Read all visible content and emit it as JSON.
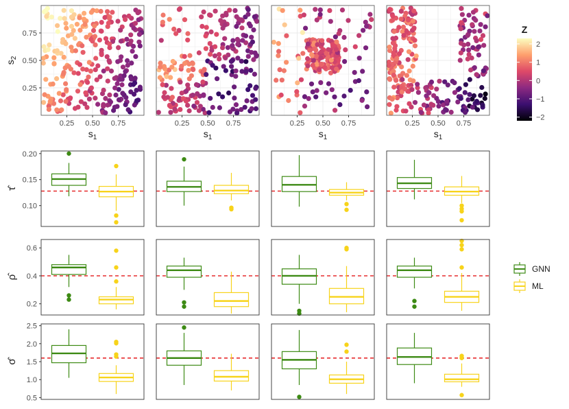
{
  "colors": {
    "gnn": "#3d8a14",
    "ml": "#f7d31a",
    "truth_line": "#e41a1c",
    "grid": "#ebebeb",
    "panel_border": "#333333",
    "text": "#333333"
  },
  "colorbar": {
    "title": "Z",
    "ticks": [
      "2",
      "1",
      "0",
      "−1",
      "−2"
    ],
    "tick_values": [
      2,
      1,
      0,
      -1,
      -2
    ],
    "range": [
      -2.2,
      2.3
    ],
    "palette": [
      "#000004",
      "#3b0f70",
      "#8c2981",
      "#de4968",
      "#fe9f6d",
      "#fcfdbf"
    ]
  },
  "legend": {
    "items": [
      {
        "label": "GNN",
        "key": "gnn"
      },
      {
        "label": "ML",
        "key": "ml"
      }
    ]
  },
  "chart_data": [
    {
      "type": "scatter",
      "title": "",
      "description": "Spatial fields, 4 panels",
      "xlabel": "s1",
      "ylabel": "s2",
      "xlim": [
        0,
        1
      ],
      "ylim": [
        0,
        1
      ],
      "x_ticks": [
        "0.25",
        "0.50",
        "0.75"
      ],
      "y_ticks": [
        "0.25",
        "0.50",
        "0.75"
      ],
      "color_scale": "magma",
      "panels": [
        {
          "pattern": "smooth gradient, high top-left to low bottom-right",
          "n_points": 280
        },
        {
          "pattern": "clustered in bottom-left and top-right blocks",
          "n_points": 220
        },
        {
          "pattern": "dense cluster in center square with sparse surroundings",
          "n_points": 230
        },
        {
          "pattern": "L-shaped: left column and bottom strip",
          "n_points": 220
        }
      ]
    },
    {
      "type": "box",
      "ylabel": "τ̂",
      "ylim": [
        0.06,
        0.205
      ],
      "y_ticks": [
        0.1,
        0.15,
        0.2
      ],
      "y_tick_labels": [
        "0.10",
        "0.15",
        "0.20"
      ],
      "true_value": 0.128,
      "panels": [
        {
          "GNN": {
            "low": 0.118,
            "q1": 0.139,
            "median": 0.151,
            "q3": 0.161,
            "high": 0.182,
            "outliers": [
              0.2
            ]
          },
          "ML": {
            "low": 0.09,
            "q1": 0.117,
            "median": 0.127,
            "q3": 0.137,
            "high": 0.16,
            "outliers": [
              0.176,
              0.081,
              0.068
            ]
          }
        },
        {
          "GNN": {
            "low": 0.1,
            "q1": 0.127,
            "median": 0.136,
            "q3": 0.147,
            "high": 0.175,
            "outliers": [
              0.189
            ]
          },
          "ML": {
            "low": 0.11,
            "q1": 0.123,
            "median": 0.129,
            "q3": 0.139,
            "high": 0.163,
            "outliers": [
              0.093,
              0.096
            ]
          }
        },
        {
          "GNN": {
            "low": 0.098,
            "q1": 0.127,
            "median": 0.14,
            "q3": 0.156,
            "high": 0.197,
            "outliers": []
          },
          "ML": {
            "low": 0.11,
            "q1": 0.12,
            "median": 0.125,
            "q3": 0.131,
            "high": 0.145,
            "outliers": [
              0.103,
              0.092
            ]
          }
        },
        {
          "GNN": {
            "low": 0.112,
            "q1": 0.133,
            "median": 0.143,
            "q3": 0.154,
            "high": 0.188,
            "outliers": []
          },
          "ML": {
            "low": 0.105,
            "q1": 0.12,
            "median": 0.127,
            "q3": 0.136,
            "high": 0.157,
            "outliers": [
              0.1,
              0.094,
              0.089,
              0.072
            ]
          }
        }
      ]
    },
    {
      "type": "box",
      "ylabel": "ρ̂",
      "ylim": [
        0.12,
        0.66
      ],
      "y_ticks": [
        0.2,
        0.4,
        0.6
      ],
      "y_tick_labels": [
        "0.2",
        "0.4",
        "0.6"
      ],
      "true_value": 0.4,
      "panels": [
        {
          "GNN": {
            "low": 0.32,
            "q1": 0.41,
            "median": 0.46,
            "q3": 0.48,
            "high": 0.55,
            "outliers": [
              0.26,
              0.23
            ]
          },
          "ML": {
            "low": 0.16,
            "q1": 0.2,
            "median": 0.23,
            "q3": 0.25,
            "high": 0.32,
            "outliers": [
              0.58,
              0.46,
              0.36
            ]
          }
        },
        {
          "GNN": {
            "low": 0.3,
            "q1": 0.39,
            "median": 0.44,
            "q3": 0.47,
            "high": 0.53,
            "outliers": [
              0.21,
              0.18
            ]
          },
          "ML": {
            "low": 0.13,
            "q1": 0.18,
            "median": 0.22,
            "q3": 0.28,
            "high": 0.43,
            "outliers": []
          }
        },
        {
          "GNN": {
            "low": 0.2,
            "q1": 0.34,
            "median": 0.4,
            "q3": 0.45,
            "high": 0.55,
            "outliers": [
              0.15,
              0.13
            ]
          },
          "ML": {
            "low": 0.14,
            "q1": 0.2,
            "median": 0.25,
            "q3": 0.31,
            "high": 0.47,
            "outliers": [
              0.6,
              0.59
            ]
          }
        },
        {
          "GNN": {
            "low": 0.31,
            "q1": 0.39,
            "median": 0.44,
            "q3": 0.47,
            "high": 0.53,
            "outliers": [
              0.22,
              0.18
            ]
          },
          "ML": {
            "low": 0.15,
            "q1": 0.21,
            "median": 0.25,
            "q3": 0.29,
            "high": 0.42,
            "outliers": [
              0.65,
              0.62,
              0.59,
              0.46
            ]
          }
        }
      ]
    },
    {
      "type": "box",
      "ylabel": "σ̂",
      "ylim": [
        0.45,
        2.55
      ],
      "y_ticks": [
        0.5,
        1.0,
        1.5,
        2.0,
        2.5
      ],
      "y_tick_labels": [
        "0.5",
        "1.0",
        "1.5",
        "2.0",
        "2.5"
      ],
      "true_value": 1.6,
      "panels": [
        {
          "GNN": {
            "low": 1.05,
            "q1": 1.47,
            "median": 1.73,
            "q3": 1.95,
            "high": 2.4,
            "outliers": []
          },
          "ML": {
            "low": 0.6,
            "q1": 0.95,
            "median": 1.06,
            "q3": 1.17,
            "high": 1.4,
            "outliers": [
              2.05,
              2.01,
              1.7,
              1.64
            ]
          }
        },
        {
          "GNN": {
            "low": 0.85,
            "q1": 1.4,
            "median": 1.6,
            "q3": 1.8,
            "high": 2.3,
            "outliers": [
              2.45
            ]
          },
          "ML": {
            "low": 0.7,
            "q1": 0.96,
            "median": 1.08,
            "q3": 1.25,
            "high": 1.72,
            "outliers": []
          }
        },
        {
          "GNN": {
            "low": 0.85,
            "q1": 1.3,
            "median": 1.55,
            "q3": 1.78,
            "high": 2.38,
            "outliers": [
              0.52
            ]
          },
          "ML": {
            "low": 0.6,
            "q1": 0.9,
            "median": 1.01,
            "q3": 1.13,
            "high": 1.5,
            "outliers": [
              1.97,
              1.78
            ]
          }
        },
        {
          "GNN": {
            "low": 0.9,
            "q1": 1.42,
            "median": 1.63,
            "q3": 1.88,
            "high": 2.3,
            "outliers": []
          },
          "ML": {
            "low": 0.8,
            "q1": 0.94,
            "median": 1.01,
            "q3": 1.15,
            "high": 1.45,
            "outliers": [
              1.66,
              1.6,
              0.57
            ]
          }
        }
      ]
    }
  ]
}
